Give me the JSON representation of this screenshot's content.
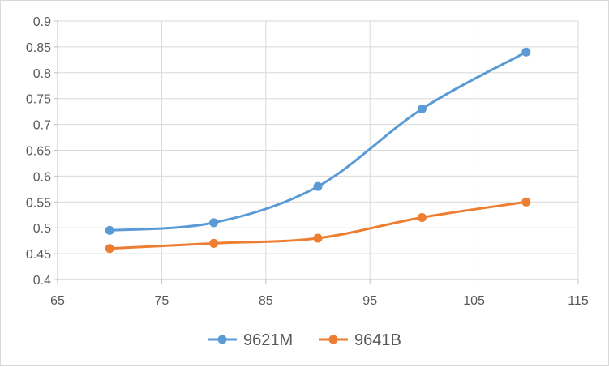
{
  "chart_data": {
    "type": "line",
    "title": "",
    "xlabel": "",
    "ylabel": "",
    "xlim": [
      65,
      115
    ],
    "ylim": [
      0.4,
      0.9
    ],
    "x_ticks": [
      65,
      75,
      85,
      95,
      105,
      115
    ],
    "y_ticks": [
      0.4,
      0.45,
      0.5,
      0.55,
      0.6,
      0.65,
      0.7,
      0.75,
      0.8,
      0.85,
      0.9
    ],
    "x_tick_labels": [
      "65",
      "75",
      "85",
      "95",
      "105",
      "115"
    ],
    "y_tick_labels": [
      "0.4",
      "0.45",
      "0.5",
      "0.55",
      "0.6",
      "0.65",
      "0.7",
      "0.75",
      "0.8",
      "0.85",
      "0.9"
    ],
    "grid": true,
    "smooth": true,
    "legend_position": "bottom",
    "series": [
      {
        "name": "9621M",
        "color": "#5b9bd5",
        "x": [
          70,
          80,
          90,
          100,
          110
        ],
        "y": [
          0.495,
          0.51,
          0.58,
          0.73,
          0.84
        ]
      },
      {
        "name": "9641B",
        "color": "#ed7d31",
        "x": [
          70,
          80,
          90,
          100,
          110
        ],
        "y": [
          0.46,
          0.47,
          0.48,
          0.52,
          0.55
        ]
      }
    ]
  }
}
